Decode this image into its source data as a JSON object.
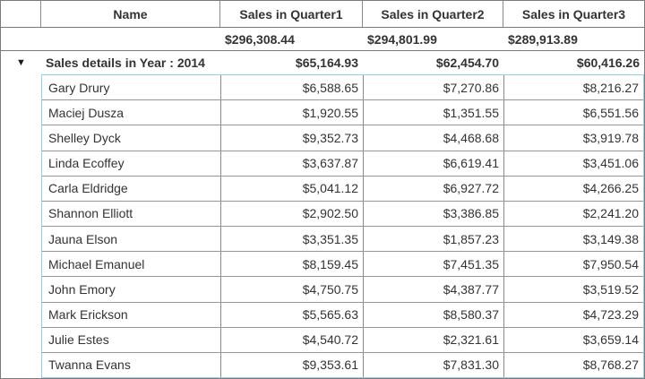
{
  "grid": {
    "columns": [
      {
        "label": "Name"
      },
      {
        "label": "Sales in Quarter1"
      },
      {
        "label": "Sales in Quarter2"
      },
      {
        "label": "Sales in Quarter3"
      }
    ],
    "summary_row": {
      "q1": "$296,308.44",
      "q2": "$294,801.99",
      "q3": "$289,913.89"
    },
    "group_row": {
      "label": "Sales details in Year : 2014",
      "q1": "$65,164.93",
      "q2": "$62,454.70",
      "q3": "$60,416.26"
    },
    "rows": [
      {
        "name": "Gary Drury",
        "q1": "$6,588.65",
        "q2": "$7,270.86",
        "q3": "$8,216.27"
      },
      {
        "name": "Maciej Dusza",
        "q1": "$1,920.55",
        "q2": "$1,351.55",
        "q3": "$6,551.56"
      },
      {
        "name": "Shelley Dyck",
        "q1": "$9,352.73",
        "q2": "$4,468.68",
        "q3": "$3,919.78"
      },
      {
        "name": "Linda Ecoffey",
        "q1": "$3,637.87",
        "q2": "$6,619.41",
        "q3": "$3,451.06"
      },
      {
        "name": "Carla Eldridge",
        "q1": "$5,041.12",
        "q2": "$6,927.72",
        "q3": "$4,266.25"
      },
      {
        "name": "Shannon Elliott",
        "q1": "$2,902.50",
        "q2": "$3,386.85",
        "q3": "$2,241.20"
      },
      {
        "name": "Jauna Elson",
        "q1": "$3,351.35",
        "q2": "$1,857.23",
        "q3": "$3,149.38"
      },
      {
        "name": "Michael Emanuel",
        "q1": "$8,159.45",
        "q2": "$7,451.35",
        "q3": "$7,950.54"
      },
      {
        "name": "John Emory",
        "q1": "$4,750.75",
        "q2": "$4,387.77",
        "q3": "$3,519.52"
      },
      {
        "name": "Mark Erickson",
        "q1": "$5,565.63",
        "q2": "$8,580.37",
        "q3": "$4,723.29"
      },
      {
        "name": "Julie Estes",
        "q1": "$4,540.72",
        "q2": "$2,321.61",
        "q3": "$3,659.14"
      },
      {
        "name": "Twanna Evans",
        "q1": "$9,353.61",
        "q2": "$7,831.30",
        "q3": "$8,768.27"
      }
    ],
    "icons": {
      "collapse": "▼"
    },
    "colors": {
      "detail_border": "#8fd2e6",
      "grid_border": "#7b7b7b",
      "row_border": "#969696",
      "text": "#333333"
    }
  }
}
